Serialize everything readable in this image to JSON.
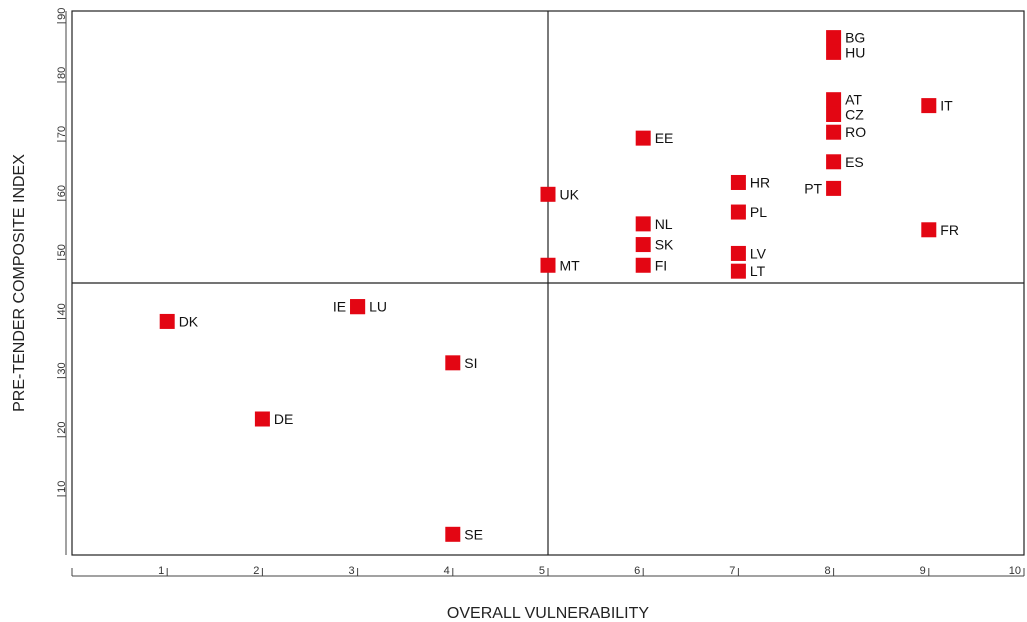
{
  "chart_data": {
    "type": "scatter",
    "xlabel": "OVERALL VULNERABILITY",
    "ylabel": "PRE-TENDER COMPOSITE INDEX",
    "xlim": [
      0,
      10
    ],
    "ylim": [
      0,
      92
    ],
    "x_ticks": [
      1,
      2,
      3,
      4,
      5,
      6,
      7,
      8,
      9,
      10
    ],
    "y_ticks": [
      10,
      20,
      30,
      40,
      50,
      60,
      70,
      80,
      90
    ],
    "quadrant_lines": {
      "x": 5,
      "y": 46
    },
    "marker_color": "#e30613",
    "grid": false,
    "points": [
      {
        "label": "BG",
        "x": 8,
        "y": 87.5,
        "label_side": "right"
      },
      {
        "label": "HU",
        "x": 8,
        "y": 85,
        "label_side": "right"
      },
      {
        "label": "AT",
        "x": 8,
        "y": 77,
        "label_side": "right"
      },
      {
        "label": "CZ",
        "x": 8,
        "y": 74.5,
        "label_side": "right"
      },
      {
        "label": "IT",
        "x": 9,
        "y": 76,
        "label_side": "right"
      },
      {
        "label": "RO",
        "x": 8,
        "y": 71.5,
        "label_side": "right"
      },
      {
        "label": "EE",
        "x": 6,
        "y": 70.5,
        "label_side": "right"
      },
      {
        "label": "ES",
        "x": 8,
        "y": 66.5,
        "label_side": "right"
      },
      {
        "label": "HR",
        "x": 7,
        "y": 63,
        "label_side": "right"
      },
      {
        "label": "PT",
        "x": 8,
        "y": 62,
        "label_side": "left"
      },
      {
        "label": "UK",
        "x": 5,
        "y": 61,
        "label_side": "right"
      },
      {
        "label": "PL",
        "x": 7,
        "y": 58,
        "label_side": "right"
      },
      {
        "label": "NL",
        "x": 6,
        "y": 56,
        "label_side": "right"
      },
      {
        "label": "FR",
        "x": 9,
        "y": 55,
        "label_side": "right"
      },
      {
        "label": "SK",
        "x": 6,
        "y": 52.5,
        "label_side": "right"
      },
      {
        "label": "LV",
        "x": 7,
        "y": 51,
        "label_side": "right"
      },
      {
        "label": "MT",
        "x": 5,
        "y": 49,
        "label_side": "right"
      },
      {
        "label": "FI",
        "x": 6,
        "y": 49,
        "label_side": "right"
      },
      {
        "label": "LT",
        "x": 7,
        "y": 48,
        "label_side": "right"
      },
      {
        "label": "IE",
        "x": 3,
        "y": 42,
        "label_side": "left"
      },
      {
        "label": "LU",
        "x": 3,
        "y": 42,
        "label_side": "right"
      },
      {
        "label": "DK",
        "x": 1,
        "y": 39.5,
        "label_side": "right"
      },
      {
        "label": "SI",
        "x": 4,
        "y": 32.5,
        "label_side": "right"
      },
      {
        "label": "DE",
        "x": 2,
        "y": 23,
        "label_side": "right"
      },
      {
        "label": "SE",
        "x": 4,
        "y": 3.5,
        "label_side": "right"
      }
    ]
  }
}
